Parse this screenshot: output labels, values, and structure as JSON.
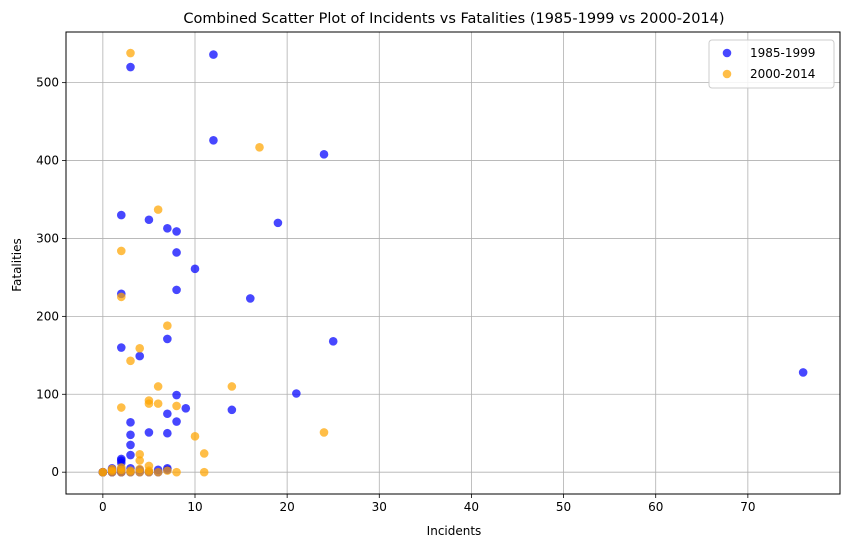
{
  "chart_data": {
    "type": "scatter",
    "title": "Combined Scatter Plot of Incidents vs Fatalities (1985-1999 vs 2000-2014)",
    "xlabel": "Incidents",
    "ylabel": "Fatalities",
    "xlim": [
      -4,
      80
    ],
    "ylim": [
      -28,
      565
    ],
    "xticks": [
      0,
      10,
      20,
      30,
      40,
      50,
      60,
      70
    ],
    "yticks": [
      0,
      100,
      200,
      300,
      400,
      500
    ],
    "grid": true,
    "legend_position": "top-right",
    "series": [
      {
        "name": "1985-1999",
        "color": "#0000ff",
        "points": [
          [
            0,
            0
          ],
          [
            0,
            0
          ],
          [
            0,
            0
          ],
          [
            0,
            0
          ],
          [
            1,
            0
          ],
          [
            1,
            0
          ],
          [
            1,
            2
          ],
          [
            1,
            3
          ],
          [
            1,
            5
          ],
          [
            2,
            0
          ],
          [
            2,
            0
          ],
          [
            2,
            2
          ],
          [
            2,
            4
          ],
          [
            2,
            12
          ],
          [
            2,
            15
          ],
          [
            2,
            17
          ],
          [
            2,
            160
          ],
          [
            2,
            229
          ],
          [
            2,
            330
          ],
          [
            3,
            520
          ],
          [
            3,
            0
          ],
          [
            3,
            5
          ],
          [
            3,
            22
          ],
          [
            3,
            35
          ],
          [
            3,
            48
          ],
          [
            3,
            64
          ],
          [
            4,
            149
          ],
          [
            4,
            0
          ],
          [
            4,
            3
          ],
          [
            5,
            324
          ],
          [
            5,
            51
          ],
          [
            5,
            0
          ],
          [
            6,
            0
          ],
          [
            6,
            3
          ],
          [
            7,
            313
          ],
          [
            7,
            171
          ],
          [
            7,
            75
          ],
          [
            7,
            50
          ],
          [
            7,
            3
          ],
          [
            7,
            5
          ],
          [
            8,
            309
          ],
          [
            8,
            282
          ],
          [
            8,
            234
          ],
          [
            8,
            99
          ],
          [
            8,
            65
          ],
          [
            9,
            82
          ],
          [
            10,
            261
          ],
          [
            12,
            536
          ],
          [
            12,
            426
          ],
          [
            14,
            80
          ],
          [
            16,
            223
          ],
          [
            19,
            320
          ],
          [
            21,
            101
          ],
          [
            24,
            408
          ],
          [
            25,
            168
          ],
          [
            76,
            128
          ]
        ]
      },
      {
        "name": "2000-2014",
        "color": "#ffa500",
        "points": [
          [
            0,
            0
          ],
          [
            0,
            0
          ],
          [
            1,
            0
          ],
          [
            1,
            2
          ],
          [
            1,
            4
          ],
          [
            2,
            0
          ],
          [
            2,
            3
          ],
          [
            2,
            6
          ],
          [
            2,
            83
          ],
          [
            2,
            225
          ],
          [
            2,
            284
          ],
          [
            3,
            538
          ],
          [
            3,
            143
          ],
          [
            3,
            0
          ],
          [
            3,
            2
          ],
          [
            4,
            159
          ],
          [
            4,
            23
          ],
          [
            4,
            15
          ],
          [
            4,
            0
          ],
          [
            4,
            4
          ],
          [
            5,
            92
          ],
          [
            5,
            88
          ],
          [
            5,
            8
          ],
          [
            5,
            2
          ],
          [
            5,
            0
          ],
          [
            6,
            337
          ],
          [
            6,
            110
          ],
          [
            6,
            88
          ],
          [
            6,
            0
          ],
          [
            7,
            188
          ],
          [
            7,
            2
          ],
          [
            8,
            85
          ],
          [
            8,
            0
          ],
          [
            10,
            46
          ],
          [
            11,
            24
          ],
          [
            11,
            0
          ],
          [
            14,
            110
          ],
          [
            17,
            417
          ],
          [
            24,
            51
          ]
        ]
      }
    ]
  }
}
